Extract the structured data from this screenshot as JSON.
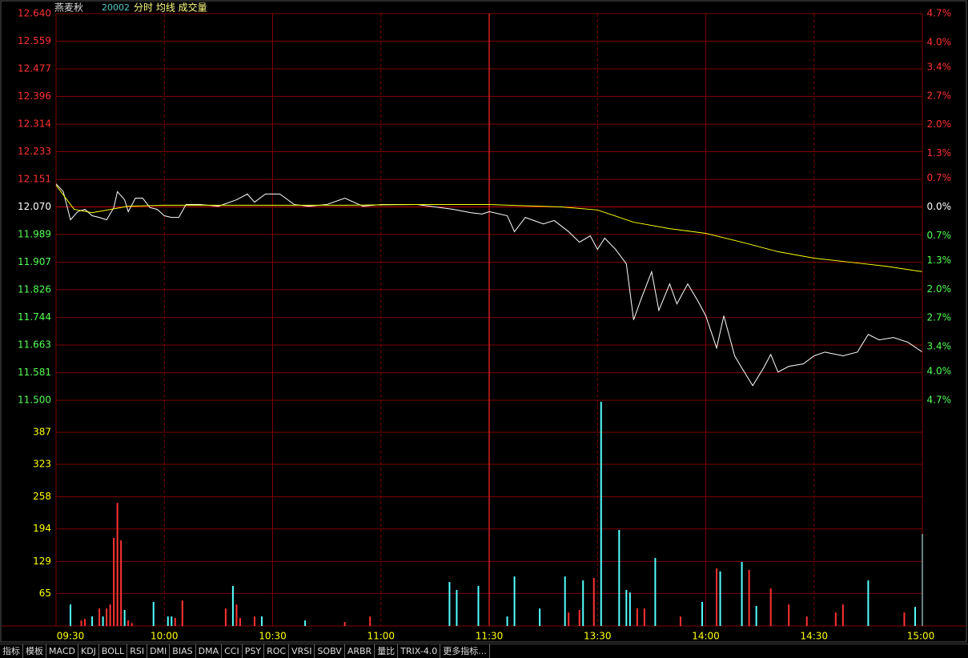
{
  "header": {
    "name": "燕麦秋",
    "code": "20002",
    "label": "分时 均线 成交量"
  },
  "chart_data": [
    {
      "type": "line",
      "xlim": [
        0,
        240
      ],
      "ylim": [
        11.5,
        12.64
      ],
      "yticks": [
        {
          "value": 12.64,
          "label": "12.640"
        },
        12.559,
        12.477,
        12.396,
        12.314,
        12.233,
        12.151,
        {
          "value": 12.07,
          "label": "12.070"
        },
        11.989,
        11.907,
        11.826,
        11.744,
        11.663,
        11.581,
        {
          "value": 11.5,
          "label": "11.500"
        }
      ],
      "y2lim": [
        -4.7,
        4.7
      ],
      "y2ticks": [
        {
          "value": 4.7,
          "label": "4.7%"
        },
        {
          "value": 4.0,
          "label": "4.0%"
        },
        {
          "value": 3.4,
          "label": "3.4%"
        },
        {
          "value": 2.7,
          "label": "2.7%"
        },
        {
          "value": 2.0,
          "label": "2.0%"
        },
        {
          "value": 1.3,
          "label": "1.3%"
        },
        {
          "value": 0.7,
          "label": "0.7%"
        },
        {
          "value": 0,
          "label": "0.0%"
        },
        {
          "value": -0.7,
          "label": "0.7%"
        },
        {
          "value": -1.3,
          "label": "1.3%"
        },
        {
          "value": -2.0,
          "label": "2.0%"
        },
        {
          "value": -2.7,
          "label": "2.7%"
        },
        {
          "value": -3.4,
          "label": "3.4%"
        },
        {
          "value": -4.0,
          "label": "4.0%"
        },
        {
          "value": -4.7,
          "label": "4.7%"
        }
      ],
      "grid": true,
      "series": [
        {
          "color": "#ffffff",
          "x": [
            0,
            2,
            4,
            6,
            8,
            10,
            12,
            14,
            16,
            17,
            19,
            20,
            22,
            24,
            26,
            28,
            30,
            32,
            34,
            36,
            40,
            45,
            50,
            53,
            55,
            58,
            62,
            66,
            70,
            75,
            80,
            85,
            90,
            100,
            110,
            115,
            118,
            120,
            125,
            127,
            130,
            135,
            138,
            142,
            145,
            148,
            150,
            152,
            155,
            158,
            160,
            162,
            165,
            167,
            170,
            172,
            175,
            178,
            180,
            183,
            185,
            188,
            190,
            193,
            196,
            198,
            200,
            203,
            207,
            210,
            213,
            218,
            222,
            225,
            228,
            232,
            236,
            240
          ],
          "values": [
            12.138,
            12.115,
            12.032,
            12.056,
            12.063,
            12.044,
            12.039,
            12.032,
            12.068,
            12.115,
            12.091,
            12.056,
            12.096,
            12.096,
            12.068,
            12.063,
            12.044,
            12.039,
            12.039,
            12.077,
            12.077,
            12.072,
            12.091,
            12.108,
            12.084,
            12.108,
            12.108,
            12.077,
            12.072,
            12.077,
            12.096,
            12.072,
            12.077,
            12.077,
            12.063,
            12.053,
            12.049,
            12.056,
            12.044,
            11.997,
            12.039,
            12.02,
            12.03,
            11.997,
            11.966,
            11.985,
            11.945,
            11.978,
            11.945,
            11.902,
            11.737,
            11.796,
            11.879,
            11.765,
            11.843,
            11.784,
            11.843,
            11.789,
            11.749,
            11.654,
            11.749,
            11.631,
            11.595,
            11.543,
            11.595,
            11.635,
            11.583,
            11.6,
            11.607,
            11.631,
            11.642,
            11.631,
            11.642,
            11.694,
            11.678,
            11.685,
            11.671,
            11.642
          ]
        },
        {
          "color": "#ffff00",
          "x": [
            0,
            5,
            10,
            20,
            30,
            40,
            60,
            80,
            100,
            120,
            140,
            150,
            160,
            170,
            180,
            190,
            200,
            210,
            220,
            230,
            240
          ],
          "values": [
            12.134,
            12.063,
            12.053,
            12.072,
            12.075,
            12.075,
            12.075,
            12.075,
            12.077,
            12.077,
            12.07,
            12.061,
            12.025,
            12.006,
            11.992,
            11.966,
            11.938,
            11.919,
            11.907,
            11.895,
            11.879
          ]
        }
      ]
    },
    {
      "type": "bar",
      "xlim": [
        0,
        240
      ],
      "xticks": [
        {
          "value": 0,
          "label": "09:30"
        },
        {
          "value": 30,
          "label": "10:00"
        },
        {
          "value": 60,
          "label": "10:30"
        },
        {
          "value": 90,
          "label": "11:00"
        },
        {
          "value": 120,
          "label": "11:30"
        },
        {
          "value": 150,
          "label": "13:30"
        },
        {
          "value": 180,
          "label": "14:00"
        },
        {
          "value": 210,
          "label": "14:30"
        },
        {
          "value": 240,
          "label": "15:00"
        }
      ],
      "ylim": [
        0,
        451
      ],
      "yticks": [
        387,
        323,
        258,
        194,
        129,
        65
      ],
      "grid": true,
      "x": [
        4,
        7,
        8,
        10,
        12,
        13,
        14,
        15,
        16,
        17,
        18,
        19,
        20,
        21,
        27,
        31,
        32,
        33,
        35,
        47,
        49,
        50,
        51,
        55,
        57,
        69,
        80,
        87,
        109,
        111,
        117,
        125,
        127,
        134,
        141,
        142,
        145,
        146,
        149,
        151,
        156,
        158,
        159,
        161,
        163,
        166,
        173,
        179,
        183,
        184,
        190,
        192,
        194,
        198,
        203,
        208,
        216,
        218,
        225,
        235,
        238,
        240
      ],
      "values": [
        43,
        11,
        14,
        19,
        35,
        19,
        35,
        43,
        176,
        246,
        171,
        32,
        11,
        6,
        48,
        19,
        19,
        16,
        51,
        35,
        80,
        43,
        16,
        19,
        19,
        11,
        8,
        19,
        88,
        72,
        80,
        19,
        99,
        35,
        99,
        27,
        32,
        91,
        96,
        448,
        192,
        72,
        67,
        35,
        35,
        136,
        19,
        48,
        115,
        109,
        128,
        112,
        40,
        75,
        43,
        19,
        27,
        43,
        91,
        27,
        38,
        184
      ],
      "colors": [
        "#54ffff",
        "#ff3232",
        "#ff3232",
        "#54ffff",
        "#ff3232",
        "#54ffff",
        "#ff3232",
        "#ff3232",
        "#ff3232",
        "#ff3232",
        "#ff3232",
        "#54ffff",
        "#ff3232",
        "#ff3232",
        "#54ffff",
        "#54ffff",
        "#54ffff",
        "#ff3232",
        "#ff3232",
        "#ff3232",
        "#54ffff",
        "#ff3232",
        "#ff3232",
        "#ff3232",
        "#54ffff",
        "#54ffff",
        "#ff3232",
        "#ff3232",
        "#54ffff",
        "#54ffff",
        "#54ffff",
        "#54ffff",
        "#54ffff",
        "#54ffff",
        "#54ffff",
        "#ff3232",
        "#ff3232",
        "#54ffff",
        "#ff3232",
        "#54ffff",
        "#54ffff",
        "#54ffff",
        "#54ffff",
        "#ff3232",
        "#ff3232",
        "#54ffff",
        "#ff3232",
        "#54ffff",
        "#ff3232",
        "#54ffff",
        "#54ffff",
        "#ff3232",
        "#54ffff",
        "#ff3232",
        "#ff3232",
        "#ff3232",
        "#ff3232",
        "#ff3232",
        "#54ffff",
        "#ff3232",
        "#54ffff",
        "#54ffff"
      ]
    }
  ],
  "tabs": [
    "指标",
    "模板",
    "MACD",
    "KDJ",
    "BOLL",
    "RSI",
    "DMI",
    "BIAS",
    "DMA",
    "CCI",
    "PSY",
    "ROC",
    "VRSI",
    "SOBV",
    "ARBR",
    "量比",
    "TRIX-4.0",
    "更多指标..."
  ]
}
